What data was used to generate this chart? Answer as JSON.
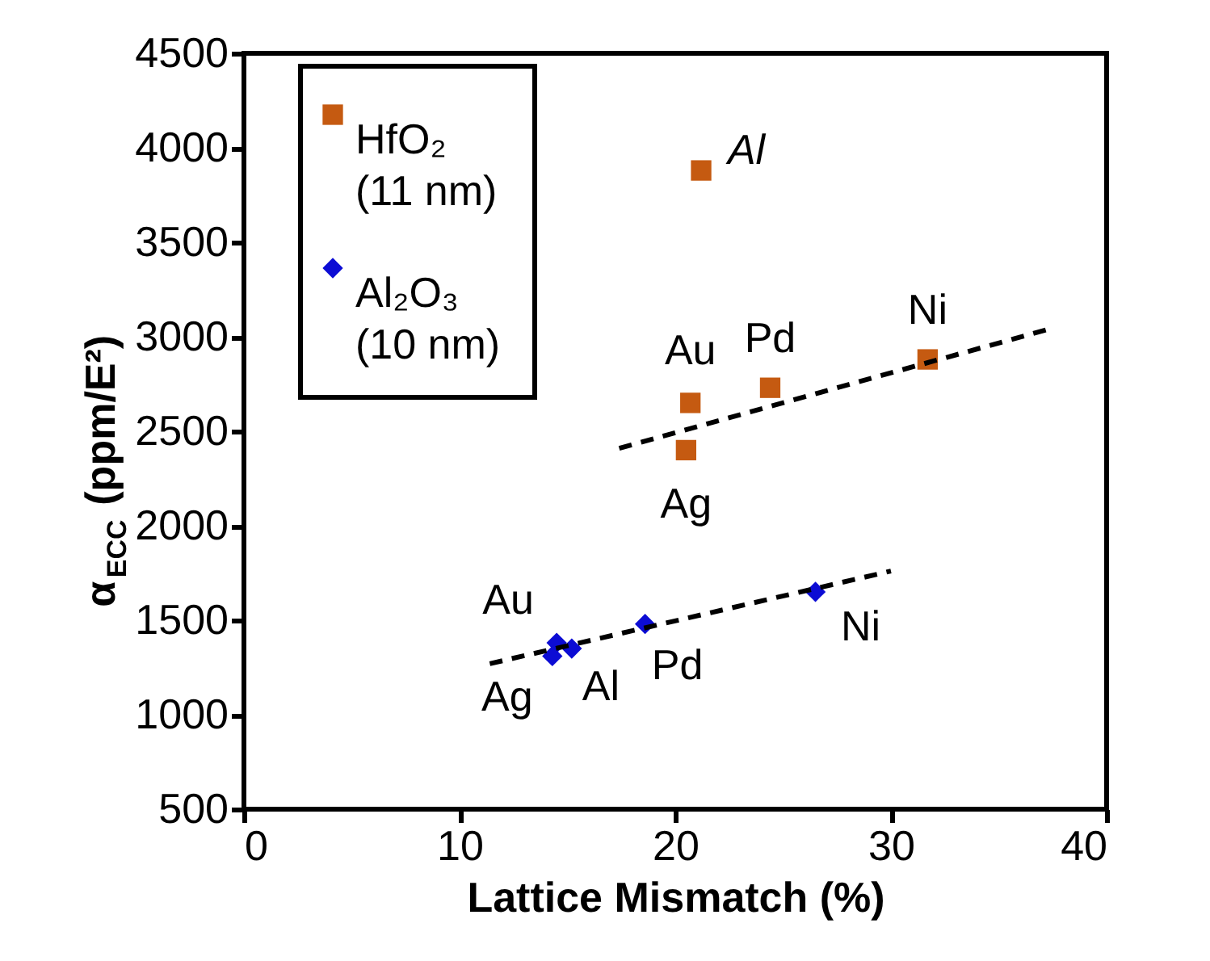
{
  "chart_data": {
    "type": "scatter",
    "xlabel": "Lattice Mismatch (%)",
    "ylabel": "α$_{ECC}$ (ppm/E²)",
    "xlim": [
      0,
      40
    ],
    "xticks": [
      0,
      10,
      20,
      30,
      40
    ],
    "ylim": [
      500,
      4500
    ],
    "yticks": [
      500,
      1000,
      1500,
      2000,
      2500,
      3000,
      3500,
      4000,
      4500
    ],
    "grid": false,
    "legend": "top left",
    "series": [
      {
        "name": "HfO₂\n(11 nm)",
        "color": "#c55a11",
        "marker": "square",
        "x": [
          21.2,
          20.7,
          20.5,
          24.4,
          31.7
        ],
        "values": [
          3880,
          2650,
          2400,
          2730,
          2880
        ]
      },
      {
        "name": "Al₂O₃\n(10 nm)",
        "color": "#0c0cd4",
        "marker": "diamond",
        "x": [
          14.5,
          14.3,
          15.2,
          18.6,
          26.5
        ],
        "values": [
          1380,
          1310,
          1350,
          1480,
          1650
        ]
      },
      {
        "type": "line",
        "color": "#000000",
        "line_style": "dashed",
        "marker": "none",
        "x": [
          17.4,
          37.3
        ],
        "values": [
          2410,
          3040
        ]
      },
      {
        "type": "line",
        "color": "#000000",
        "line_style": "dashed",
        "marker": "none",
        "x": [
          11.4,
          30.0
        ],
        "values": [
          1270,
          1760
        ]
      }
    ],
    "annotations": [
      {
        "text": "Al",
        "x": 21.2,
        "y": 3880
      },
      {
        "text": "Au",
        "x": 20.7,
        "y": 2650
      },
      {
        "text": "Ag",
        "x": 20.5,
        "y": 2400
      },
      {
        "text": "Pd",
        "x": 24.4,
        "y": 2730
      },
      {
        "text": "Ni",
        "x": 31.7,
        "y": 2880
      },
      {
        "text": "Au",
        "x": 14.5,
        "y": 1380
      },
      {
        "text": "Ag",
        "x": 14.3,
        "y": 1310
      },
      {
        "text": "Al",
        "x": 15.2,
        "y": 1350
      },
      {
        "text": "Pd",
        "x": 18.6,
        "y": 1480
      },
      {
        "text": "Ni",
        "x": 26.5,
        "y": 1650
      }
    ]
  }
}
